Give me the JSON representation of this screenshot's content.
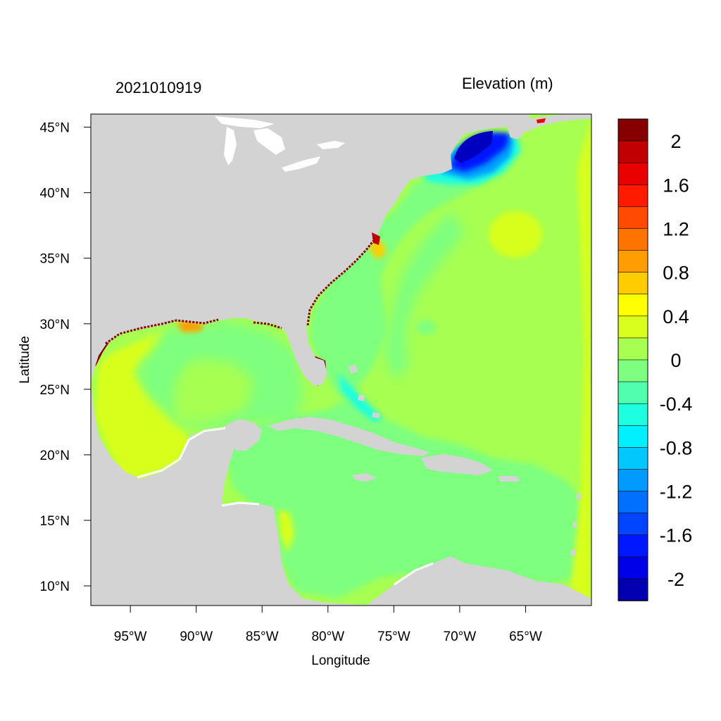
{
  "map": {
    "timestamp": "2021010919",
    "variable_title": "Elevation (m)",
    "x_axis_label": "Longitude",
    "y_axis_label": "Latitude",
    "lon_range": [
      -98,
      -60
    ],
    "lat_range": [
      8.5,
      46
    ],
    "lon_ticks": [
      "95°W",
      "90°W",
      "85°W",
      "80°W",
      "75°W",
      "70°W",
      "65°W"
    ],
    "lat_ticks": [
      "45°N",
      "40°N",
      "35°N",
      "30°N",
      "25°N",
      "20°N",
      "15°N",
      "10°N"
    ],
    "colors": {
      "land": "#d3d3d3",
      "frame": "#000000"
    }
  },
  "colorbar": {
    "levels": [
      2.2,
      2.0,
      1.8,
      1.6,
      1.4,
      1.2,
      1.0,
      0.8,
      0.6,
      0.4,
      0.2,
      0.0,
      -0.2,
      -0.4,
      -0.6,
      -0.8,
      -1.0,
      -1.2,
      -1.4,
      -1.6,
      -1.8,
      -2.0
    ],
    "colors": [
      "#870000",
      "#c00000",
      "#e80000",
      "#ff1a00",
      "#ff4a00",
      "#ff7400",
      "#ff9d00",
      "#ffcc00",
      "#ffff00",
      "#d8ff1e",
      "#a6ff51",
      "#7fff7f",
      "#4fffaf",
      "#1effdf",
      "#00f0ff",
      "#00c8ff",
      "#009bff",
      "#0070ff",
      "#0044ff",
      "#0018ff",
      "#0000e8",
      "#0000b0"
    ],
    "labels": [
      "2",
      "1.6",
      "1.2",
      "0.8",
      "0.4",
      "0",
      "-0.4",
      "-0.8",
      "-1.2",
      "-1.6",
      "-2"
    ]
  }
}
